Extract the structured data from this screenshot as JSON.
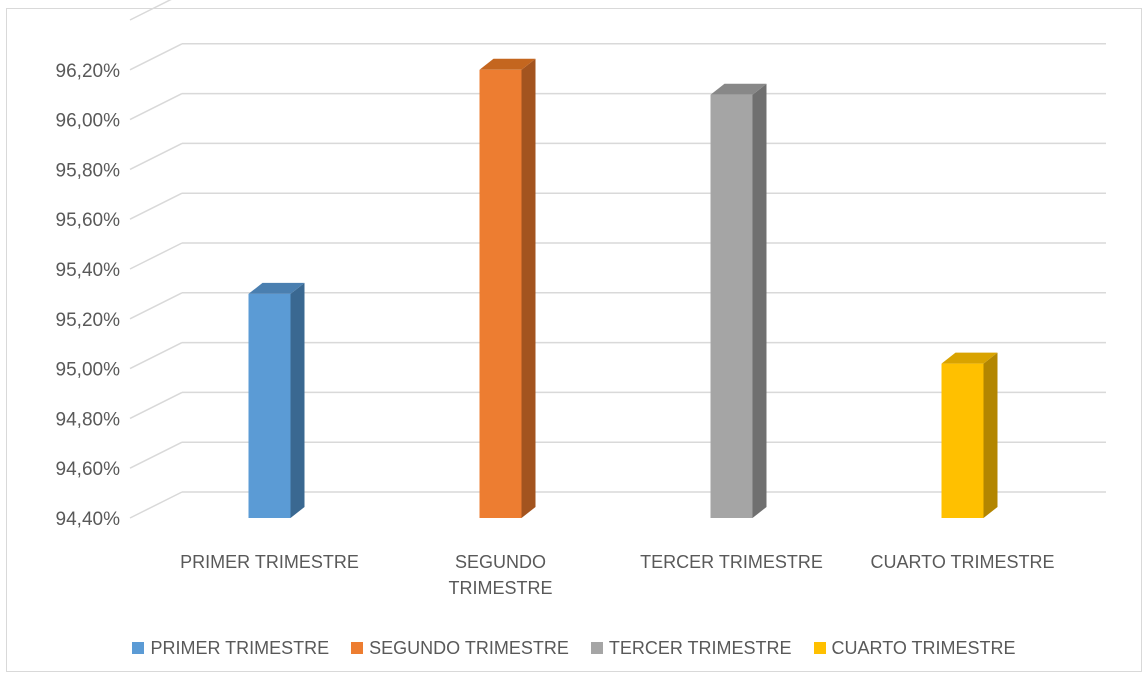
{
  "chart_data": {
    "type": "bar",
    "categories": [
      "PRIMER TRIMESTRE",
      "SEGUNDO TRIMESTRE",
      "TERCER TRIMESTRE",
      "CUARTO TRIMESTRE"
    ],
    "category_labels": [
      [
        "PRIMER TRIMESTRE"
      ],
      [
        "SEGUNDO",
        "TRIMESTRE"
      ],
      [
        "TERCER TRIMESTRE"
      ],
      [
        "CUARTO TRIMESTRE"
      ]
    ],
    "values": [
      95.3,
      96.2,
      96.1,
      95.02
    ],
    "colors": [
      "#5b9bd5",
      "#ed7d31",
      "#a5a5a5",
      "#ffc000"
    ],
    "side_colors": [
      "#3a6891",
      "#a3541f",
      "#707070",
      "#b38600"
    ],
    "top_colors": [
      "#4a7fb0",
      "#c4661f",
      "#888888",
      "#d9a300"
    ],
    "ylim": [
      94.4,
      96.4
    ],
    "yticks": [
      "94,40%",
      "94,60%",
      "94,80%",
      "95,00%",
      "95,20%",
      "95,40%",
      "95,60%",
      "95,80%",
      "96,00%",
      "96,20%"
    ],
    "ytick_values": [
      94.4,
      94.6,
      94.8,
      95.0,
      95.2,
      95.4,
      95.6,
      95.8,
      96.0,
      96.2
    ],
    "grid": true,
    "legend_position": "bottom",
    "legend": [
      "PRIMER TRIMESTRE",
      "SEGUNDO TRIMESTRE",
      "TERCER TRIMESTRE",
      "CUARTO TRIMESTRE"
    ],
    "title": "",
    "xlabel": "",
    "ylabel": ""
  }
}
